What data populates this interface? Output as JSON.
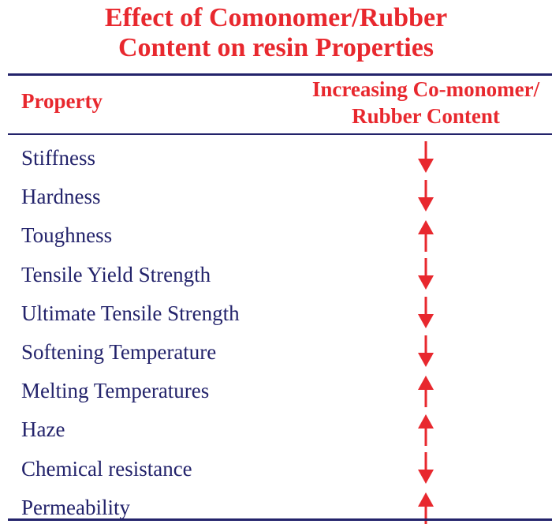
{
  "title": {
    "line1": "Effect of Comonomer/Rubber",
    "line2": "Content on resin Properties"
  },
  "header": {
    "property": "Property",
    "effect_line1": "Increasing Co-monomer/",
    "effect_line2": "Rubber Content"
  },
  "colors": {
    "accent": "#e8282e",
    "text": "#23236b"
  },
  "rows": [
    {
      "property": "Stiffness",
      "direction": "down",
      "icon": "arrow-down-icon"
    },
    {
      "property": "Hardness",
      "direction": "down",
      "icon": "arrow-down-icon"
    },
    {
      "property": "Toughness",
      "direction": "up",
      "icon": "arrow-up-icon"
    },
    {
      "property": "Tensile Yield Strength",
      "direction": "down",
      "icon": "arrow-down-icon"
    },
    {
      "property": "Ultimate Tensile Strength",
      "direction": "down",
      "icon": "arrow-down-icon"
    },
    {
      "property": "Softening Temperature",
      "direction": "down",
      "icon": "arrow-down-icon"
    },
    {
      "property": "Melting Temperatures",
      "direction": "up",
      "icon": "arrow-up-icon"
    },
    {
      "property": "Haze",
      "direction": "up",
      "icon": "arrow-up-icon"
    },
    {
      "property": "Chemical resistance",
      "direction": "down",
      "icon": "arrow-down-icon"
    },
    {
      "property": "Permeability",
      "direction": "up",
      "icon": "arrow-up-icon"
    }
  ]
}
